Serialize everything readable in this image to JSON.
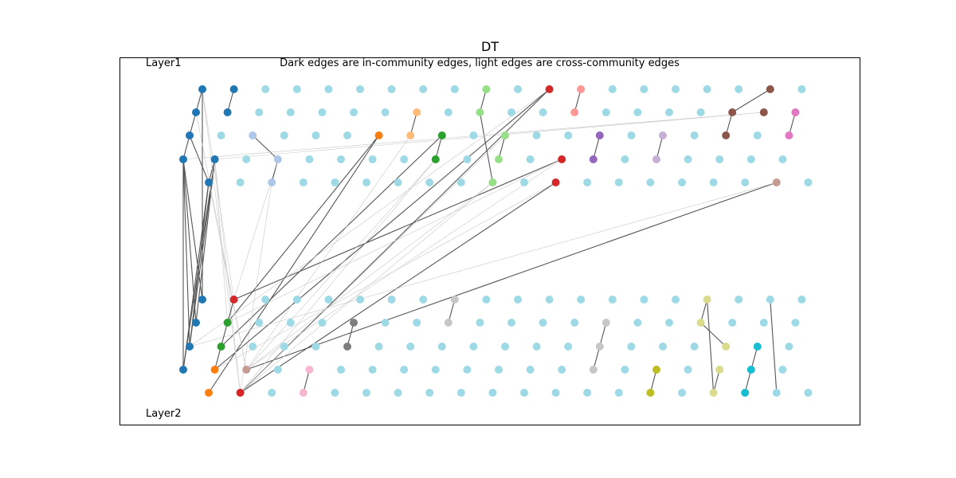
{
  "title": "DT",
  "subtitle": "Dark edges are in-community edges, light edges are cross-community edges",
  "layer_labels": {
    "top": "Layer1",
    "bottom": "Layer2"
  },
  "colors": {
    "blue": "#1f77b4",
    "default": "#9edae5",
    "orange": "#ff7f0e",
    "light_orange": "#ffbb78",
    "green": "#2ca02c",
    "light_green": "#98df8a",
    "red": "#d62728",
    "pink_light": "#ff9896",
    "purple": "#9467bd",
    "lavender": "#c5b0d5",
    "periwinkle": "#aec7e8",
    "brown": "#8c564b",
    "tan": "#c49c94",
    "magenta": "#e377c2",
    "pink": "#f7b6d2",
    "gray": "#7f7f7f",
    "light_gray": "#c7c7c7",
    "olive": "#bcbd22",
    "khaki": "#dbdb8d",
    "cyan": "#17becf",
    "edge_dark": "#555555",
    "edge_light": "#c8c8c8"
  }
}
